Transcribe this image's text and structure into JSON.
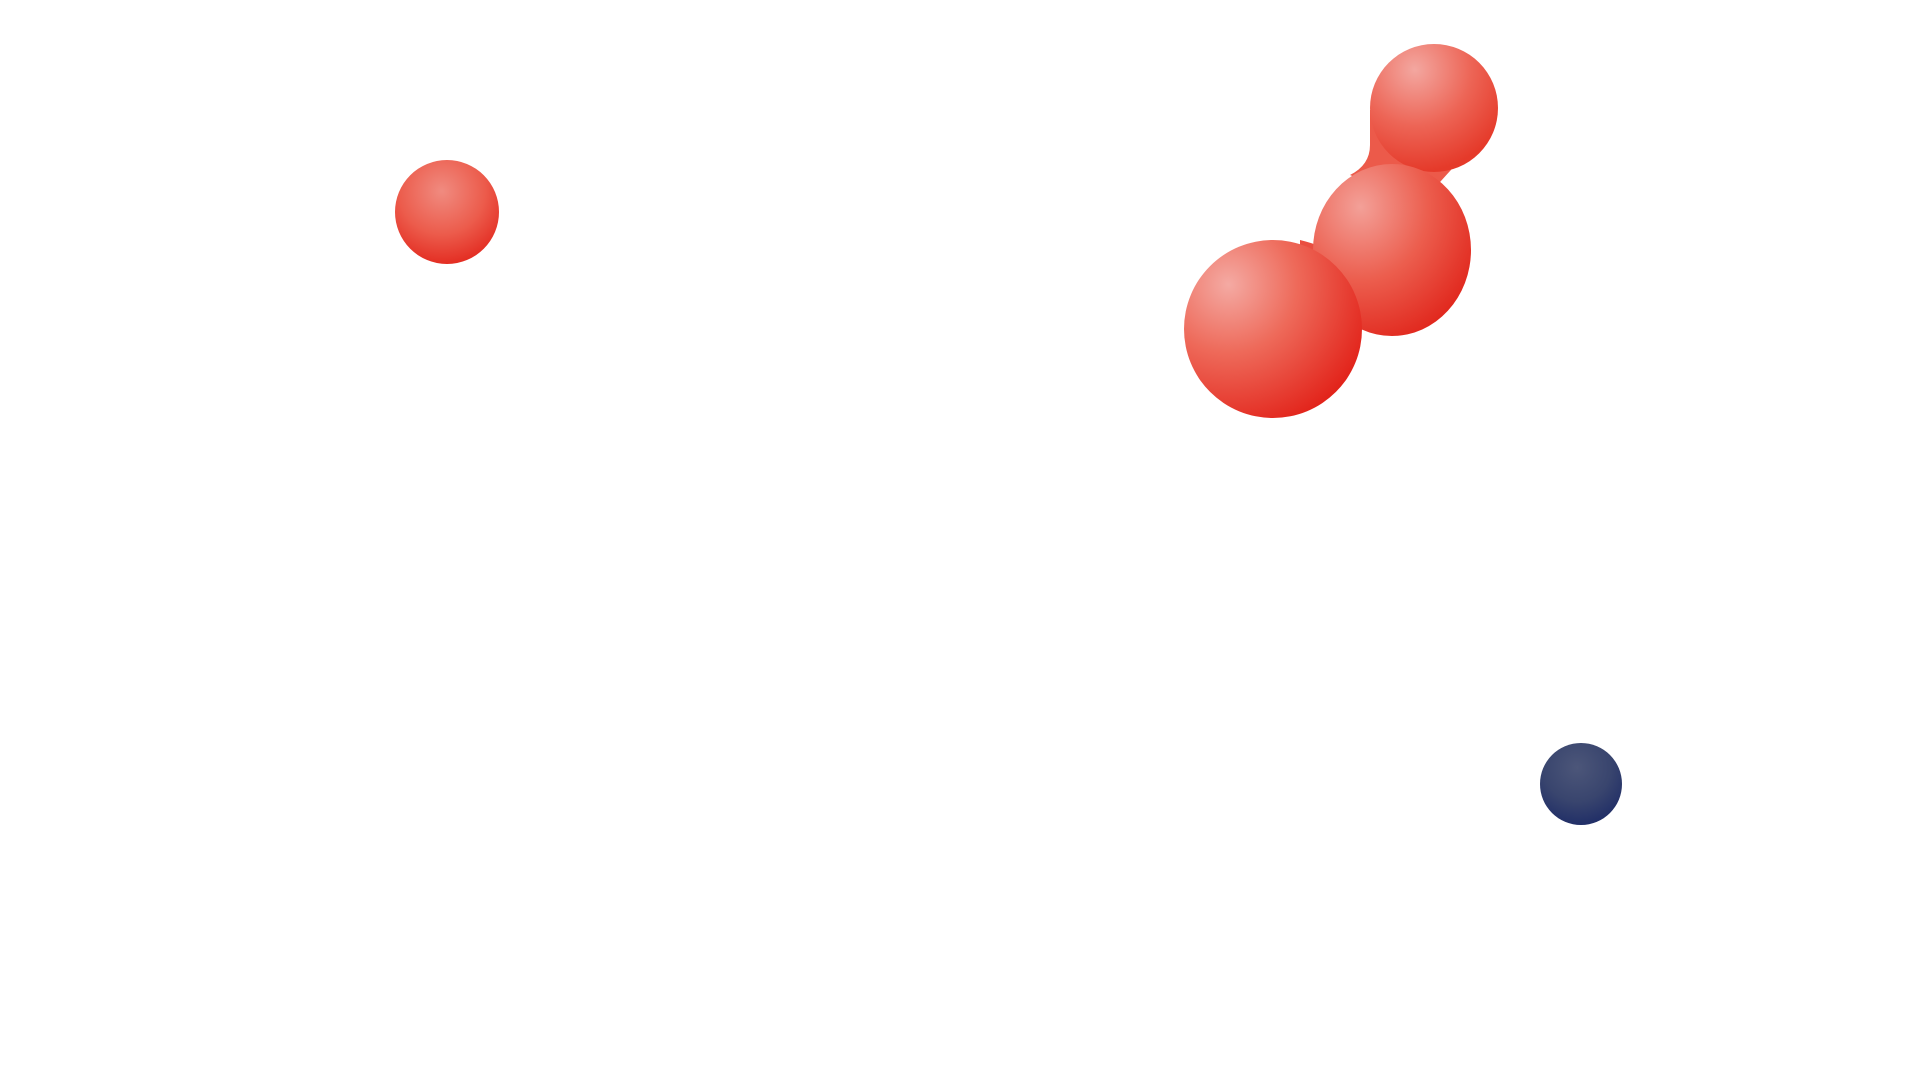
{
  "scene": {
    "background_color": "#ffffff",
    "colors": {
      "red_light": "#f4a6a0",
      "red_mid": "#ec5a4a",
      "red_deep": "#e2261c",
      "navy_light": "#4a5478",
      "navy_deep": "#1f2d66"
    },
    "objects": [
      {
        "name": "small-red-sphere",
        "color": "red"
      },
      {
        "name": "red-blob-cluster",
        "color": "red",
        "lobes": 3
      },
      {
        "name": "small-navy-sphere",
        "color": "navy"
      }
    ]
  }
}
